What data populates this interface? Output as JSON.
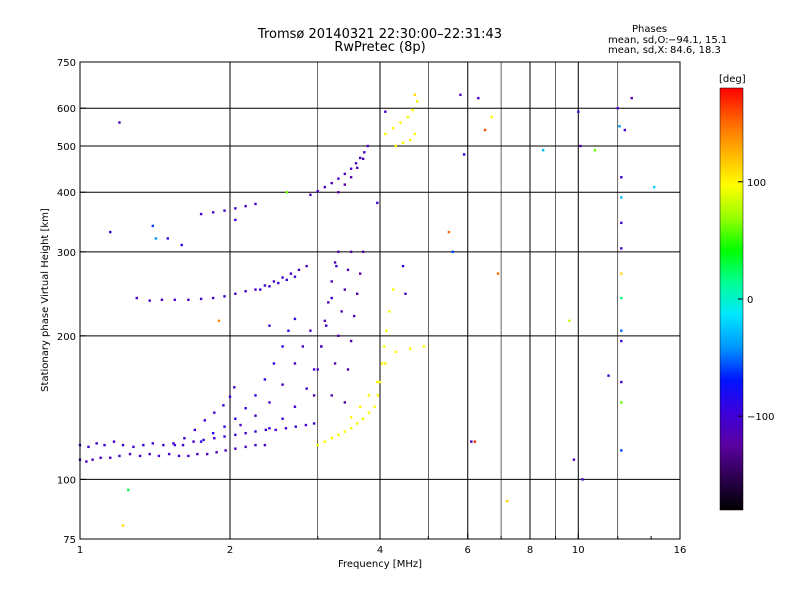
{
  "header": {
    "title": "Tromsø 20140321 22:30:00–22:31:43",
    "subtitle": "RwPretec (8p)"
  },
  "stats": {
    "heading": "Phases",
    "line_o_label": "mean, sd,O:",
    "line_o_values": "−94.1, 15.1",
    "line_x_label": "mean, sd,X:",
    "line_x_values": "84.6, 18.3"
  },
  "chart_data": {
    "type": "scatter",
    "title": "Tromsø 20140321 22:30:00–22:31:43",
    "subtitle": "RwPretec (8p)",
    "xlabel": "Frequency [MHz]",
    "ylabel": "Stationary phase Virtual Height [km]",
    "xscale": "log",
    "yscale": "log",
    "xlim": [
      1,
      16
    ],
    "ylim": [
      75,
      750
    ],
    "x_ticks": [
      1,
      2,
      4,
      6,
      8,
      10,
      16
    ],
    "x_tick_labels": [
      "1",
      "2",
      "4",
      "6",
      "8",
      "10",
      "16"
    ],
    "x_minor_ticks": [
      3,
      5,
      7,
      9,
      12,
      14
    ],
    "y_ticks": [
      75,
      100,
      200,
      300,
      400,
      500,
      600,
      750
    ],
    "y_tick_labels": [
      "75",
      "100",
      "200",
      "300",
      "400",
      "500",
      "600",
      "750"
    ],
    "x_grid_major": [
      2,
      4,
      6,
      8,
      10
    ],
    "x_grid_minor": [
      3,
      5,
      7,
      9,
      12
    ],
    "y_grid": [
      100,
      200,
      300,
      400,
      500,
      600
    ],
    "colorbar": {
      "label": "[deg]",
      "range": [
        -180,
        180
      ],
      "ticks": [
        100,
        0,
        -100
      ],
      "tick_labels": [
        "100",
        "0",
        "−100"
      ],
      "colormap": [
        "#000000",
        "#2d0050",
        "#5a00a0",
        "#3c00dc",
        "#0014ff",
        "#0096ff",
        "#00e6ff",
        "#00ff96",
        "#00ff00",
        "#96ff00",
        "#ffff00",
        "#ffb400",
        "#ff6400",
        "#ff0000"
      ]
    },
    "series": [
      {
        "phase": -100,
        "points": [
          [
            1.0,
            118
          ],
          [
            1.04,
            117
          ],
          [
            1.08,
            119
          ],
          [
            1.12,
            118
          ],
          [
            1.17,
            120
          ],
          [
            1.22,
            118
          ],
          [
            1.28,
            117
          ],
          [
            1.34,
            118
          ],
          [
            1.4,
            119
          ],
          [
            1.47,
            118
          ],
          [
            1.54,
            119
          ],
          [
            1.61,
            118
          ],
          [
            1.69,
            120
          ],
          [
            1.77,
            121
          ],
          [
            1.86,
            122
          ],
          [
            1.95,
            123
          ],
          [
            2.05,
            124
          ],
          [
            2.15,
            125
          ],
          [
            2.25,
            126
          ],
          [
            2.36,
            127
          ],
          [
            2.47,
            127
          ],
          [
            2.59,
            128
          ],
          [
            2.71,
            129
          ],
          [
            2.84,
            130
          ],
          [
            2.95,
            131
          ]
        ]
      },
      {
        "phase": -110,
        "points": [
          [
            1.0,
            110
          ],
          [
            1.03,
            109
          ],
          [
            1.06,
            110
          ],
          [
            1.1,
            111
          ],
          [
            1.15,
            111
          ],
          [
            1.2,
            112
          ],
          [
            1.26,
            113
          ],
          [
            1.32,
            112
          ],
          [
            1.38,
            113
          ],
          [
            1.44,
            112
          ],
          [
            1.51,
            113
          ],
          [
            1.58,
            112
          ],
          [
            1.65,
            112
          ],
          [
            1.72,
            113
          ],
          [
            1.8,
            113
          ],
          [
            1.88,
            114
          ],
          [
            1.96,
            115
          ],
          [
            2.05,
            116
          ],
          [
            2.15,
            117
          ],
          [
            2.25,
            118
          ],
          [
            2.35,
            118
          ]
        ]
      },
      {
        "phase": -100,
        "points": [
          [
            1.55,
            118
          ],
          [
            1.62,
            122
          ],
          [
            1.7,
            127
          ],
          [
            1.78,
            133
          ],
          [
            1.86,
            138
          ],
          [
            1.94,
            143
          ],
          [
            2.0,
            149
          ],
          [
            2.04,
            156
          ]
        ]
      },
      {
        "phase": -90,
        "points": [
          [
            1.75,
            120
          ],
          [
            1.85,
            125
          ],
          [
            1.95,
            129
          ],
          [
            2.05,
            134
          ],
          [
            2.15,
            141
          ],
          [
            2.25,
            150
          ],
          [
            2.35,
            162
          ],
          [
            2.45,
            175
          ],
          [
            2.55,
            190
          ],
          [
            2.62,
            205
          ],
          [
            2.7,
            217
          ]
        ]
      },
      {
        "phase": -100,
        "points": [
          [
            2.4,
            128
          ],
          [
            2.55,
            134
          ],
          [
            2.7,
            142
          ],
          [
            2.85,
            155
          ],
          [
            2.95,
            170
          ],
          [
            3.05,
            190
          ],
          [
            3.12,
            210
          ],
          [
            3.2,
            240
          ],
          [
            3.27,
            280
          ]
        ]
      },
      {
        "phase": -110,
        "points": [
          [
            2.1,
            130
          ],
          [
            2.25,
            136
          ],
          [
            2.4,
            145
          ],
          [
            2.55,
            158
          ],
          [
            2.7,
            175
          ],
          [
            2.8,
            190
          ],
          [
            2.9,
            205
          ]
        ]
      },
      {
        "phase": -115,
        "points": [
          [
            2.95,
            150
          ],
          [
            3.0,
            170
          ],
          [
            3.05,
            190
          ],
          [
            3.1,
            215
          ],
          [
            3.15,
            235
          ],
          [
            3.2,
            260
          ],
          [
            3.25,
            285
          ],
          [
            3.3,
            300
          ]
        ]
      },
      {
        "phase": -118,
        "points": [
          [
            3.2,
            150
          ],
          [
            3.25,
            175
          ],
          [
            3.3,
            200
          ],
          [
            3.35,
            225
          ],
          [
            3.4,
            250
          ],
          [
            3.45,
            275
          ],
          [
            3.5,
            300
          ]
        ]
      },
      {
        "phase": -120,
        "points": [
          [
            3.4,
            145
          ],
          [
            3.45,
            170
          ],
          [
            3.5,
            195
          ],
          [
            3.55,
            220
          ],
          [
            3.6,
            245
          ],
          [
            3.65,
            270
          ],
          [
            3.7,
            300
          ]
        ]
      },
      {
        "phase": -105,
        "points": [
          [
            1.3,
            240
          ],
          [
            1.38,
            237
          ],
          [
            1.46,
            238
          ],
          [
            1.55,
            238
          ],
          [
            1.65,
            238
          ],
          [
            1.75,
            239
          ],
          [
            1.85,
            240
          ],
          [
            1.95,
            242
          ],
          [
            2.05,
            245
          ],
          [
            2.15,
            248
          ],
          [
            2.25,
            250
          ],
          [
            2.35,
            255
          ],
          [
            2.45,
            260
          ],
          [
            2.55,
            265
          ],
          [
            2.65,
            270
          ],
          [
            2.75,
            275
          ],
          [
            2.85,
            280
          ]
        ]
      },
      {
        "phase": -100,
        "points": [
          [
            2.3,
            250
          ],
          [
            2.4,
            254
          ],
          [
            2.5,
            258
          ],
          [
            2.6,
            262
          ],
          [
            2.7,
            266
          ]
        ]
      },
      {
        "phase": -105,
        "points": [
          [
            1.75,
            360
          ],
          [
            1.85,
            363
          ],
          [
            1.95,
            366
          ],
          [
            2.05,
            370
          ],
          [
            2.15,
            374
          ],
          [
            2.25,
            378
          ]
        ]
      },
      {
        "phase": -110,
        "points": [
          [
            2.9,
            395
          ],
          [
            3.0,
            402
          ],
          [
            3.1,
            410
          ],
          [
            3.2,
            418
          ],
          [
            3.3,
            427
          ],
          [
            3.4,
            437
          ],
          [
            3.5,
            448
          ],
          [
            3.58,
            460
          ],
          [
            3.65,
            472
          ],
          [
            3.72,
            485
          ],
          [
            3.78,
            500
          ]
        ]
      },
      {
        "phase": -120,
        "points": [
          [
            3.3,
            400
          ],
          [
            3.4,
            415
          ],
          [
            3.5,
            430
          ],
          [
            3.6,
            450
          ],
          [
            3.7,
            470
          ]
        ]
      },
      {
        "phase": 95,
        "points": [
          [
            3.0,
            118
          ],
          [
            3.1,
            120
          ],
          [
            3.2,
            122
          ],
          [
            3.3,
            124
          ],
          [
            3.4,
            126
          ],
          [
            3.5,
            128
          ],
          [
            3.6,
            131
          ],
          [
            3.7,
            134
          ],
          [
            3.8,
            138
          ],
          [
            3.9,
            142
          ],
          [
            3.96,
            150
          ],
          [
            4.0,
            160
          ],
          [
            4.04,
            175
          ],
          [
            4.08,
            190
          ],
          [
            4.12,
            205
          ],
          [
            4.18,
            225
          ],
          [
            4.25,
            250
          ]
        ]
      },
      {
        "phase": 100,
        "points": [
          [
            3.5,
            135
          ],
          [
            3.65,
            142
          ],
          [
            3.8,
            150
          ],
          [
            3.95,
            160
          ],
          [
            4.1,
            175
          ],
          [
            4.3,
            185
          ],
          [
            4.6,
            188
          ],
          [
            4.9,
            190
          ]
        ]
      },
      {
        "phase": 100,
        "points": [
          [
            4.1,
            530
          ],
          [
            4.25,
            545
          ],
          [
            4.4,
            560
          ],
          [
            4.55,
            575
          ],
          [
            4.65,
            595
          ],
          [
            4.75,
            620
          ]
        ]
      },
      {
        "phase": 100,
        "points": [
          [
            4.3,
            500
          ],
          [
            4.45,
            508
          ],
          [
            4.6,
            515
          ],
          [
            4.7,
            530
          ]
        ]
      }
    ],
    "scattered_points": [
      {
        "x": 1.15,
        "y": 330,
        "phase": -100
      },
      {
        "x": 1.2,
        "y": 560,
        "phase": -110
      },
      {
        "x": 1.22,
        "y": 80,
        "phase": 110
      },
      {
        "x": 1.25,
        "y": 95,
        "phase": 30
      },
      {
        "x": 1.4,
        "y": 340,
        "phase": -60
      },
      {
        "x": 1.42,
        "y": 320,
        "phase": -40
      },
      {
        "x": 1.5,
        "y": 320,
        "phase": -100
      },
      {
        "x": 1.6,
        "y": 310,
        "phase": -95
      },
      {
        "x": 1.9,
        "y": 215,
        "phase": 140
      },
      {
        "x": 2.05,
        "y": 350,
        "phase": -100
      },
      {
        "x": 2.4,
        "y": 210,
        "phase": -100
      },
      {
        "x": 2.6,
        "y": 400,
        "phase": 60
      },
      {
        "x": 3.95,
        "y": 380,
        "phase": -100
      },
      {
        "x": 4.1,
        "y": 590,
        "phase": -110
      },
      {
        "x": 4.45,
        "y": 280,
        "phase": -90
      },
      {
        "x": 4.5,
        "y": 245,
        "phase": -100
      },
      {
        "x": 4.7,
        "y": 640,
        "phase": 110
      },
      {
        "x": 5.5,
        "y": 330,
        "phase": 150
      },
      {
        "x": 5.6,
        "y": 300,
        "phase": -60
      },
      {
        "x": 5.8,
        "y": 640,
        "phase": -110
      },
      {
        "x": 5.9,
        "y": 480,
        "phase": -80
      },
      {
        "x": 6.1,
        "y": 120,
        "phase": -100
      },
      {
        "x": 6.2,
        "y": 120,
        "phase": 170
      },
      {
        "x": 6.3,
        "y": 630,
        "phase": -100
      },
      {
        "x": 6.5,
        "y": 540,
        "phase": 160
      },
      {
        "x": 6.7,
        "y": 575,
        "phase": 100
      },
      {
        "x": 6.9,
        "y": 270,
        "phase": 150
      },
      {
        "x": 7.2,
        "y": 90,
        "phase": 110
      },
      {
        "x": 8.5,
        "y": 490,
        "phase": -30
      },
      {
        "x": 9.6,
        "y": 215,
        "phase": 80
      },
      {
        "x": 9.8,
        "y": 110,
        "phase": -110
      },
      {
        "x": 10.0,
        "y": 590,
        "phase": -100
      },
      {
        "x": 10.1,
        "y": 500,
        "phase": -110
      },
      {
        "x": 10.2,
        "y": 100,
        "phase": -100
      },
      {
        "x": 10.8,
        "y": 490,
        "phase": 60
      },
      {
        "x": 11.5,
        "y": 165,
        "phase": -100
      },
      {
        "x": 12.0,
        "y": 600,
        "phase": -100
      },
      {
        "x": 12.1,
        "y": 550,
        "phase": -40
      },
      {
        "x": 12.2,
        "y": 430,
        "phase": -100
      },
      {
        "x": 12.2,
        "y": 390,
        "phase": -30
      },
      {
        "x": 12.2,
        "y": 345,
        "phase": -100
      },
      {
        "x": 12.2,
        "y": 305,
        "phase": -110
      },
      {
        "x": 12.2,
        "y": 270,
        "phase": 110
      },
      {
        "x": 12.2,
        "y": 240,
        "phase": 20
      },
      {
        "x": 12.2,
        "y": 205,
        "phase": -50
      },
      {
        "x": 12.2,
        "y": 195,
        "phase": -100
      },
      {
        "x": 12.2,
        "y": 160,
        "phase": -100
      },
      {
        "x": 12.2,
        "y": 145,
        "phase": 60
      },
      {
        "x": 12.2,
        "y": 115,
        "phase": -60
      },
      {
        "x": 12.4,
        "y": 540,
        "phase": -100
      },
      {
        "x": 12.8,
        "y": 630,
        "phase": -120
      },
      {
        "x": 14.2,
        "y": 410,
        "phase": -20
      }
    ]
  }
}
